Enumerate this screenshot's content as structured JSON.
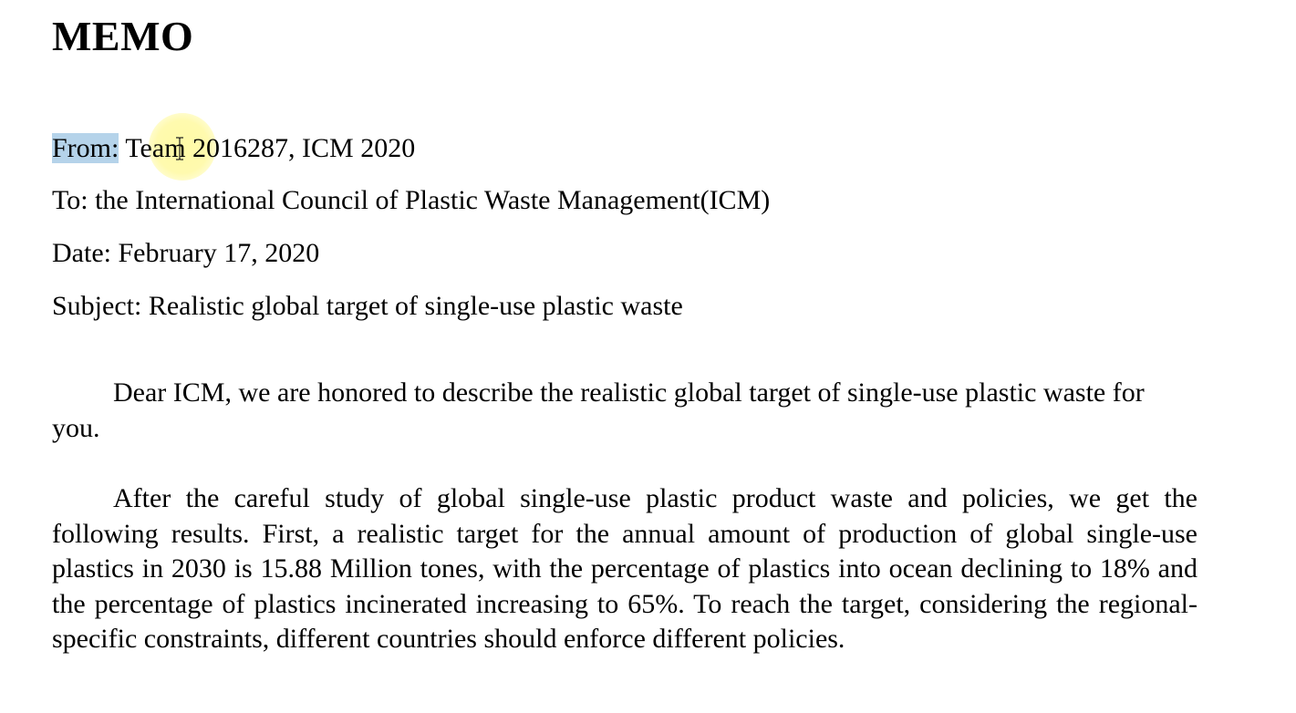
{
  "memo": {
    "title": "MEMO",
    "from_label": "From:",
    "from_value_part1": "Team",
    "from_value_part2": " 2016287, ICM 2020",
    "to": "To: the International Council of Plastic Waste Management(ICM)",
    "date": "Date: February 17, 2020",
    "subject": "Subject: Realistic global target of single-use plastic waste"
  },
  "body": {
    "paragraphs": [
      "Dear ICM, we are honored to describe the realistic global target of single-use plastic waste for you.",
      "After the careful study of global single-use plastic product waste and policies, we get the following results. First, a realistic target for the annual amount of production of global single-use plastics in 2030 is 15.88 Million tones, with the percentage of plastics into ocean declining to 18% and the percentage of plastics incinerated increasing to 65%. To reach the target, considering the regional-specific constraints, different countries should enforce different policies."
    ]
  },
  "colors": {
    "selection_highlight": "#b5d3ea",
    "cursor_halo": "#fff48c"
  },
  "icons": {
    "cursor": "i-beam-cursor-icon"
  }
}
